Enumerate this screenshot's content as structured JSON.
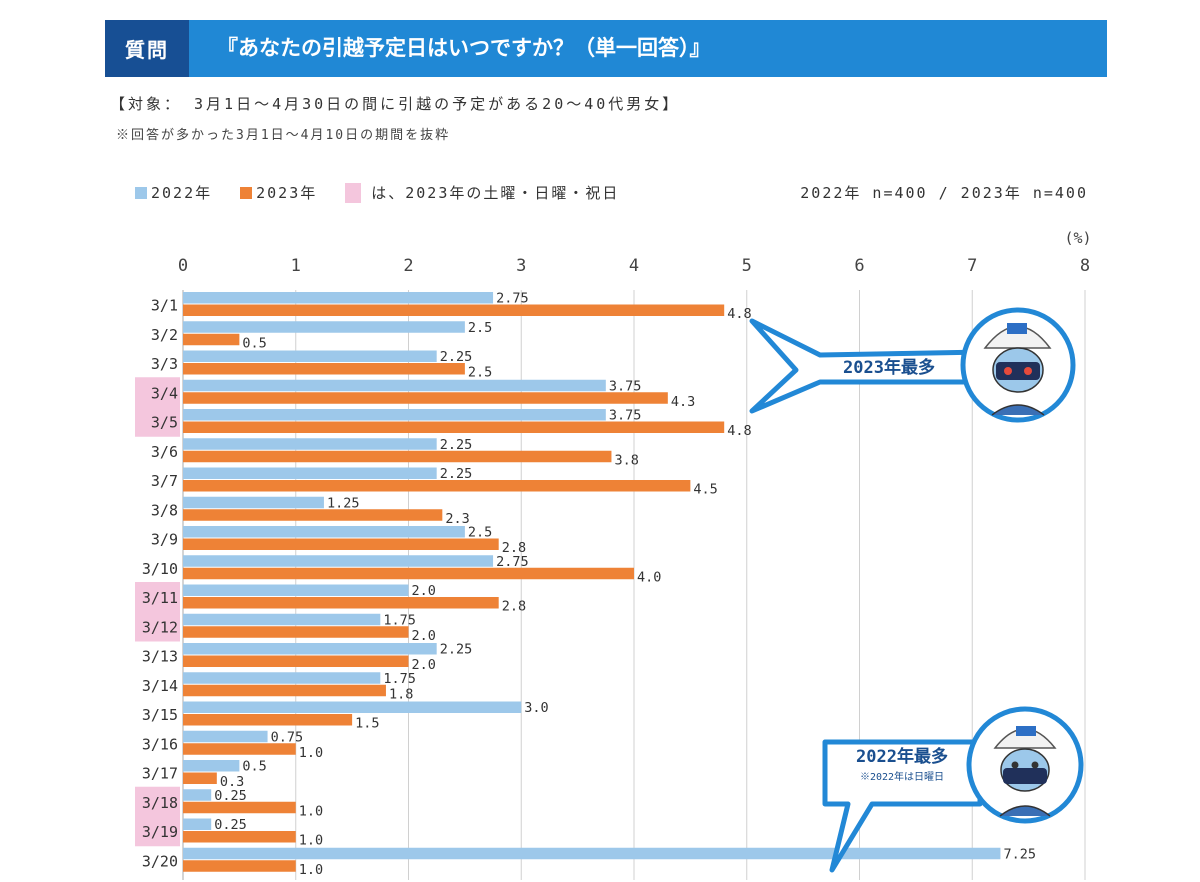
{
  "header": {
    "tag": "質問",
    "question": "『あなたの引越予定日はいつですか？（単一回答）』"
  },
  "subtitle": {
    "target": "【対象： 3月1日～4月30日の間に引越の予定がある20～40代男女】",
    "note": "※回答が多かった3月1日～4月10日の期間を抜粋"
  },
  "legend": {
    "series_2022": "2022年",
    "series_2023": "2023年",
    "holiday": "は、2023年の土曜・日曜・祝日",
    "sample": "2022年 n=400 / 2023年 n=400"
  },
  "colors": {
    "series_2022": "#9dc8ea",
    "series_2023": "#ee8236",
    "holiday": "#f4c6dd",
    "header_dark": "#174f94",
    "header_light": "#2088d5",
    "callout_border": "#2288d6",
    "callout_text": "#1a4f8f"
  },
  "callouts": {
    "max_2023": "2023年最多",
    "max_2022": "2022年最多",
    "max_2022_note": "※2022年は日曜日"
  },
  "chart_data": {
    "type": "bar",
    "orientation": "horizontal",
    "unit_label": "(%)",
    "xlim": [
      0,
      8
    ],
    "xticks": [
      0,
      1,
      2,
      3,
      4,
      5,
      6,
      7,
      8
    ],
    "grid": true,
    "categories": [
      "3/1",
      "3/2",
      "3/3",
      "3/4",
      "3/5",
      "3/6",
      "3/7",
      "3/8",
      "3/9",
      "3/10",
      "3/11",
      "3/12",
      "3/13",
      "3/14",
      "3/15",
      "3/16",
      "3/17",
      "3/18",
      "3/19",
      "3/20"
    ],
    "series": [
      {
        "name": "2022年",
        "values": [
          2.75,
          2.5,
          2.25,
          3.75,
          3.75,
          2.25,
          2.25,
          1.25,
          2.5,
          2.75,
          2.0,
          1.75,
          2.25,
          1.75,
          3.0,
          0.75,
          0.5,
          0.25,
          0.25,
          7.25
        ],
        "labels": [
          "2.75",
          "2.5",
          "2.25",
          "3.75",
          "3.75",
          "2.25",
          "2.25",
          "1.25",
          "2.5",
          "2.75",
          "2.0",
          "1.75",
          "2.25",
          "1.75",
          "3.0",
          "0.75",
          "0.5",
          "0.25",
          "0.25",
          "7.25"
        ]
      },
      {
        "name": "2023年",
        "values": [
          4.8,
          0.5,
          2.5,
          4.3,
          4.8,
          3.8,
          4.5,
          2.3,
          2.8,
          4.0,
          2.8,
          2.0,
          2.0,
          1.8,
          1.5,
          1.0,
          0.3,
          1.0,
          1.0,
          1.0
        ],
        "labels": [
          "4.8",
          "0.5",
          "2.5",
          "4.3",
          "4.8",
          "3.8",
          "4.5",
          "2.3",
          "2.8",
          "4.0",
          "2.8",
          "2.0",
          "2.0",
          "1.8",
          "1.5",
          "1.0",
          "0.3",
          "1.0",
          "1.0",
          "1.0"
        ]
      }
    ],
    "holiday_categories": [
      "3/4",
      "3/5",
      "3/11",
      "3/12",
      "3/18",
      "3/19"
    ]
  }
}
